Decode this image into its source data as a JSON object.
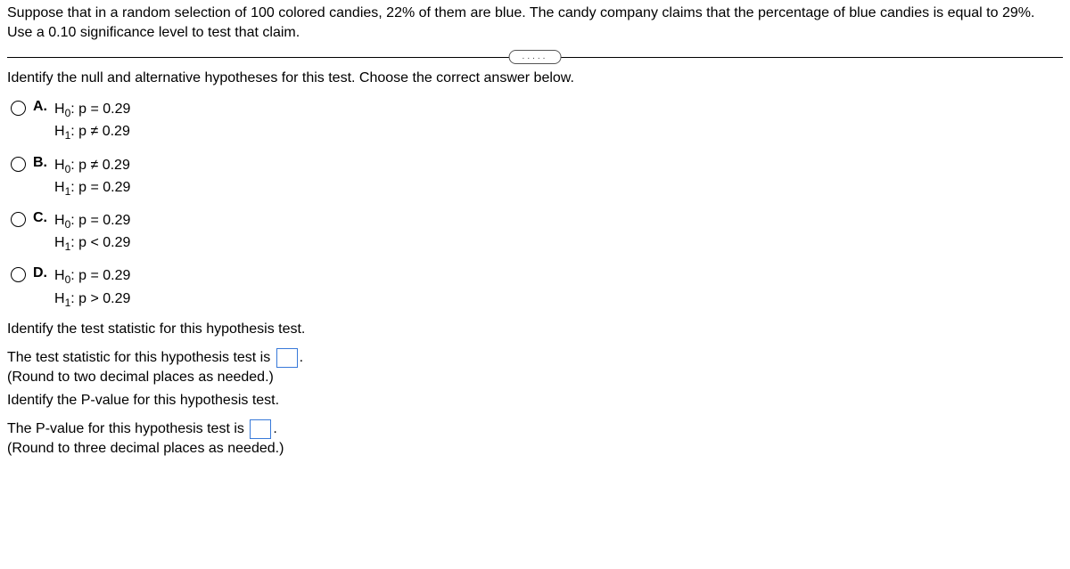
{
  "problem": "Suppose that in a random selection of 100 colored candies, 22% of them are blue. The candy company claims that the percentage of blue candies is equal to 29%. Use a 0.10 significance level to test that claim.",
  "q1_stem": "Identify the null and alternative hypotheses for this test. Choose the correct answer below.",
  "options": {
    "a": {
      "label": "A.",
      "h0": "H",
      "h0sub": "0",
      "h0rest": ": p = 0.29",
      "h1": "H",
      "h1sub": "1",
      "h1rest": ": p ≠ 0.29"
    },
    "b": {
      "label": "B.",
      "h0": "H",
      "h0sub": "0",
      "h0rest": ": p ≠ 0.29",
      "h1": "H",
      "h1sub": "1",
      "h1rest": ": p = 0.29"
    },
    "c": {
      "label": "C.",
      "h0": "H",
      "h0sub": "0",
      "h0rest": ": p = 0.29",
      "h1": "H",
      "h1sub": "1",
      "h1rest": ": p < 0.29"
    },
    "d": {
      "label": "D.",
      "h0": "H",
      "h0sub": "0",
      "h0rest": ": p = 0.29",
      "h1": "H",
      "h1sub": "1",
      "h1rest": ": p > 0.29"
    }
  },
  "q2_stem": "Identify the test statistic for this hypothesis test.",
  "q2_answer_lead": "The test statistic for this hypothesis test is ",
  "q2_answer_tail": ".",
  "q2_instruction": "(Round to two decimal places as needed.)",
  "q3_stem": "Identify the P-value for this hypothesis test.",
  "q3_answer_lead": "The P-value for this hypothesis test is ",
  "q3_answer_tail": ".",
  "q3_instruction": "(Round to three decimal places as needed.)",
  "dots": "....."
}
